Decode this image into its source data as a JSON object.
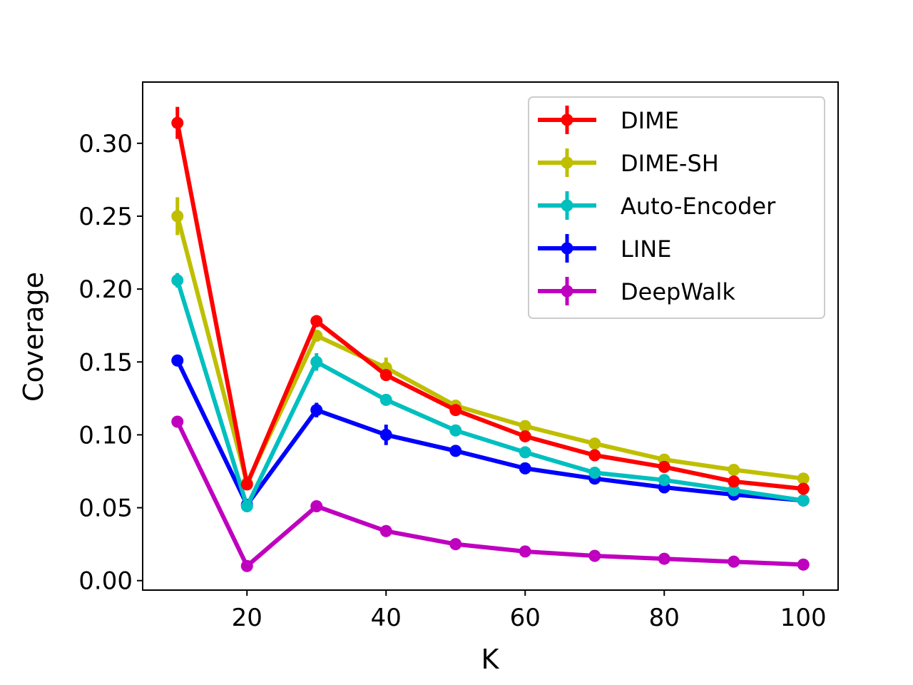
{
  "chart_data": {
    "type": "line",
    "title": "",
    "xlabel": "K",
    "ylabel": "Coverage",
    "x": [
      10,
      20,
      30,
      40,
      50,
      60,
      70,
      80,
      90,
      100
    ],
    "xlim": [
      5,
      105
    ],
    "ylim": [
      -0.0065,
      0.342
    ],
    "xticks": [
      20,
      40,
      60,
      80,
      100
    ],
    "xtick_labels": [
      "20",
      "40",
      "60",
      "80",
      "100"
    ],
    "yticks": [
      0.0,
      0.05,
      0.1,
      0.15,
      0.2,
      0.25,
      0.3
    ],
    "ytick_labels": [
      "0.00",
      "0.05",
      "0.10",
      "0.15",
      "0.20",
      "0.25",
      "0.30"
    ],
    "grid": false,
    "legend_position": "top-right",
    "series": [
      {
        "name": "DIME",
        "color": "#ff0000",
        "values": [
          0.314,
          0.066,
          0.178,
          0.141,
          0.117,
          0.099,
          0.086,
          0.078,
          0.068,
          0.063
        ],
        "errors": [
          0.011,
          0.003,
          0.004,
          0.003,
          0.002,
          0.002,
          0.002,
          0.002,
          0.002,
          0.002
        ]
      },
      {
        "name": "DIME-SH",
        "color": "#bfbf00",
        "values": [
          0.25,
          0.067,
          0.168,
          0.146,
          0.12,
          0.106,
          0.094,
          0.083,
          0.076,
          0.07
        ],
        "errors": [
          0.013,
          0.004,
          0.004,
          0.007,
          0.003,
          0.003,
          0.004,
          0.003,
          0.002,
          0.002
        ]
      },
      {
        "name": "Auto-Encoder",
        "color": "#00bfbf",
        "values": [
          0.206,
          0.051,
          0.15,
          0.124,
          0.103,
          0.088,
          0.074,
          0.069,
          0.062,
          0.055
        ],
        "errors": [
          0.005,
          0.002,
          0.006,
          0.002,
          0.002,
          0.002,
          0.002,
          0.002,
          0.002,
          0.002
        ]
      },
      {
        "name": "LINE",
        "color": "#0000ff",
        "values": [
          0.151,
          0.052,
          0.117,
          0.1,
          0.089,
          0.077,
          0.07,
          0.064,
          0.059,
          0.055
        ],
        "errors": [
          0.003,
          0.003,
          0.005,
          0.007,
          0.004,
          0.003,
          0.002,
          0.004,
          0.002,
          0.002
        ]
      },
      {
        "name": "DeepWalk",
        "color": "#bf00bf",
        "values": [
          0.109,
          0.01,
          0.051,
          0.034,
          0.025,
          0.02,
          0.017,
          0.015,
          0.013,
          0.011
        ],
        "errors": [
          0.002,
          0.001,
          0.002,
          0.002,
          0.001,
          0.001,
          0.001,
          0.001,
          0.001,
          0.001
        ]
      }
    ]
  }
}
